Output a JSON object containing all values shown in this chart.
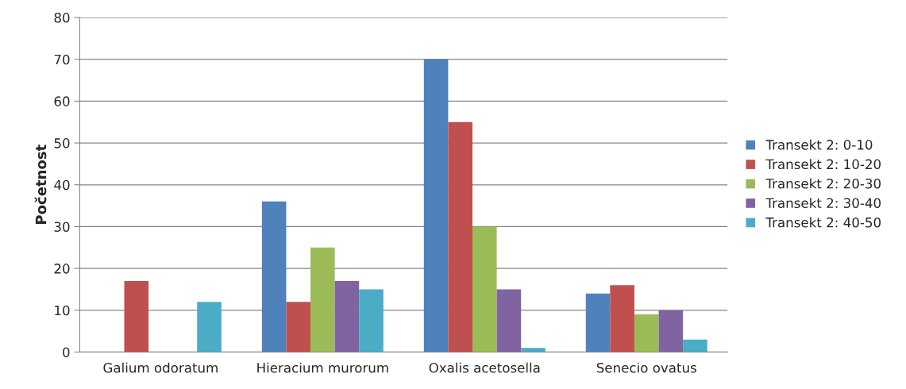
{
  "chart_data": {
    "type": "bar",
    "ylabel": "Početnost",
    "categories": [
      "Galium odoratum",
      "Hieracium murorum",
      "Oxalis acetosella",
      "Senecio ovatus"
    ],
    "series": [
      {
        "name": "Transekt 2: 0-10",
        "color": "#4f81bd",
        "values": [
          null,
          36,
          70,
          14
        ]
      },
      {
        "name": "Transekt 2: 10-20",
        "color": "#c0504d",
        "values": [
          17,
          12,
          55,
          16
        ]
      },
      {
        "name": "Transekt 2: 20-30",
        "color": "#9bbb59",
        "values": [
          null,
          25,
          30,
          9
        ]
      },
      {
        "name": "Transekt 2: 30-40",
        "color": "#8064a2",
        "values": [
          null,
          17,
          15,
          10
        ]
      },
      {
        "name": "Transekt 2: 40-50",
        "color": "#4bacc6",
        "values": [
          12,
          15,
          1,
          3
        ]
      }
    ],
    "ylim": [
      0,
      80
    ],
    "yticks": [
      0,
      10,
      20,
      30,
      40,
      50,
      60,
      70,
      80
    ],
    "grid": "y",
    "legend": "right"
  }
}
